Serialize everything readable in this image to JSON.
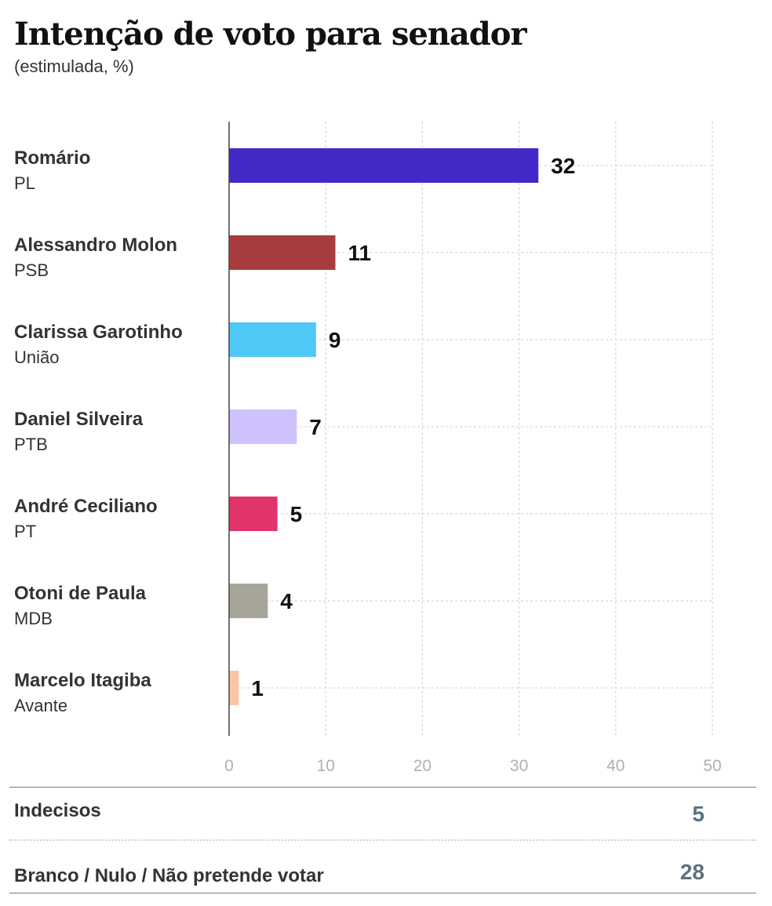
{
  "header": {
    "title": "Intenção de voto para senador",
    "subtitle": "(estimulada, %)"
  },
  "chart_data": {
    "type": "bar",
    "orientation": "horizontal",
    "title": "Intenção de voto para senador",
    "subtitle": "(estimulada, %)",
    "categories": [
      "Romário",
      "Alessandro Molon",
      "Clarissa Garotinho",
      "Daniel Silveira",
      "André Ceciliano",
      "Otoni de Paula",
      "Marcelo Itagiba"
    ],
    "parties": [
      "PL",
      "PSB",
      "União",
      "PTB",
      "PT",
      "MDB",
      "Avante"
    ],
    "values": [
      32,
      11,
      9,
      7,
      5,
      4,
      1
    ],
    "colors": [
      "#4329c8",
      "#a83c3c",
      "#4fc8f5",
      "#cfc1fb",
      "#e2336b",
      "#a7a49a",
      "#f9c6a3"
    ],
    "xlim": [
      0,
      50
    ],
    "xticks": [
      0,
      10,
      20,
      30,
      40,
      50
    ],
    "grid": true
  },
  "footer": {
    "rows": [
      {
        "label": "Indecisos",
        "value": "5"
      },
      {
        "label": "Branco / Nulo / Não pretende votar",
        "value": "28"
      }
    ]
  }
}
